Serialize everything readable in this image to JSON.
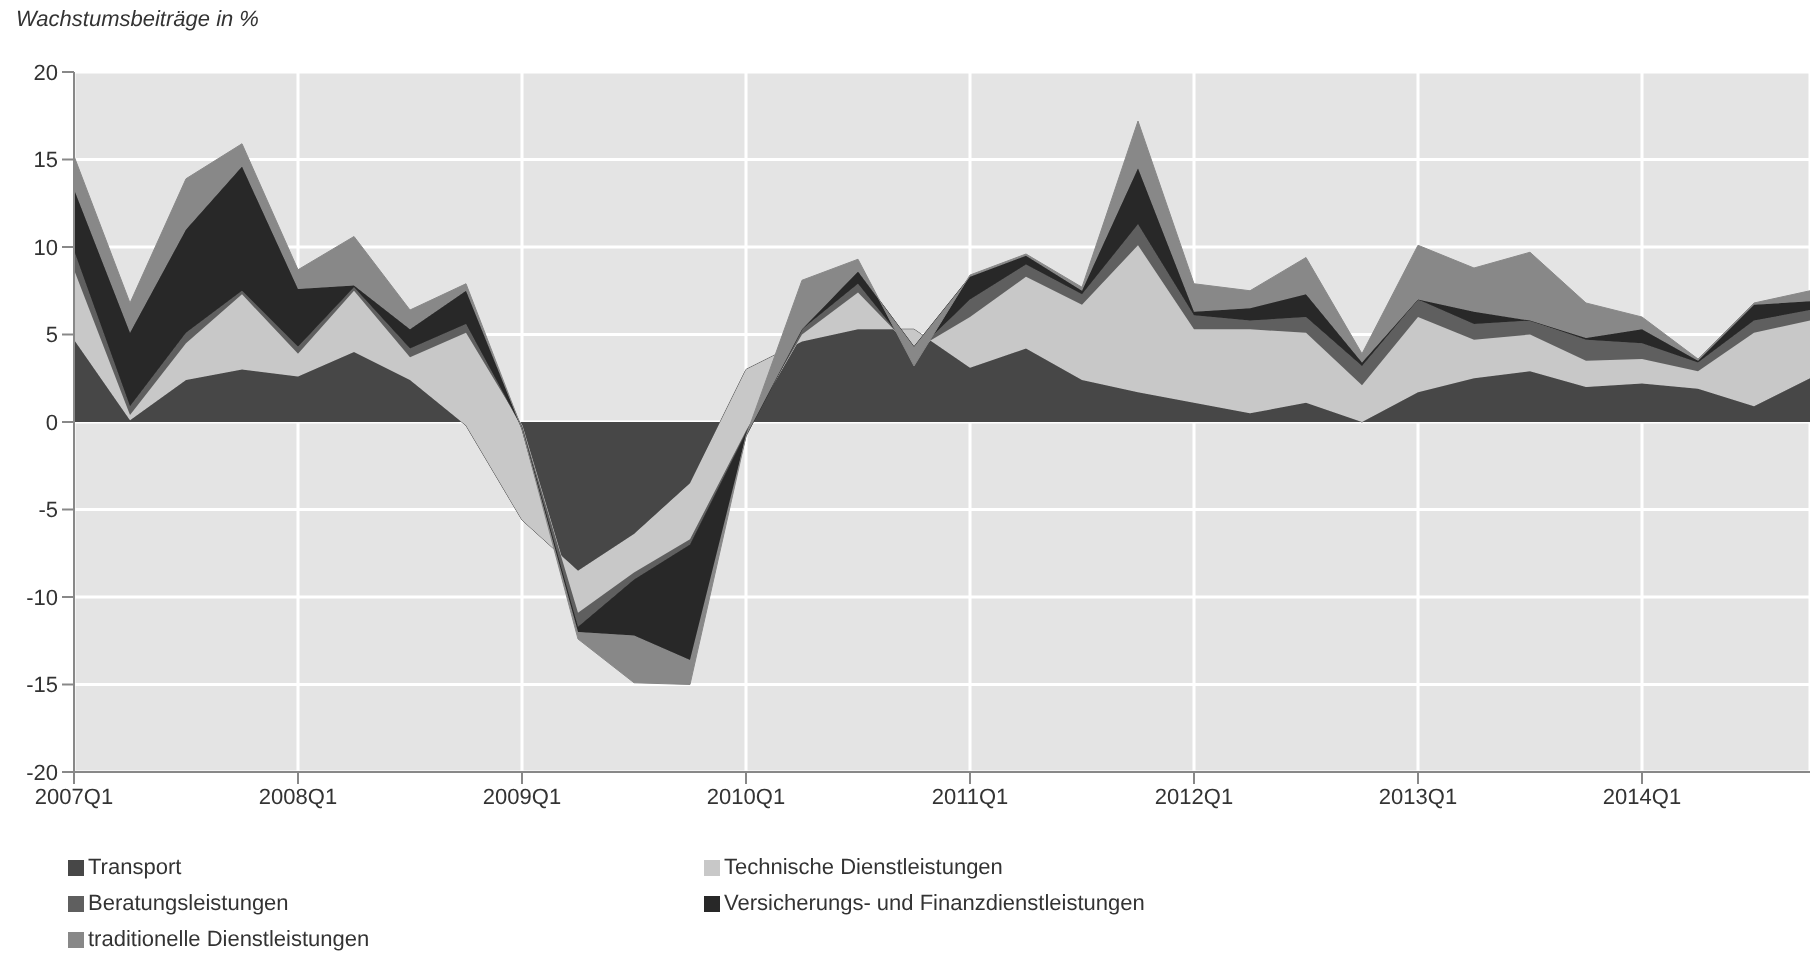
{
  "chart_data": {
    "type": "area",
    "stacked": true,
    "ylabel": "Wachstumsbeiträge in %",
    "categories": [
      "2007Q1",
      null,
      null,
      null,
      "2008Q1",
      null,
      null,
      null,
      "2009Q1",
      null,
      null,
      null,
      "2010Q1",
      null,
      null,
      null,
      "2011Q1",
      null,
      null,
      null,
      "2012Q1",
      null,
      null,
      null,
      "2013Q1",
      null,
      null,
      null,
      "2014Q1",
      null,
      null,
      null
    ],
    "series": [
      {
        "name": "Transport",
        "color": "#474747",
        "values": [
          4.7,
          0.1,
          2.4,
          3.0,
          2.6,
          4.0,
          2.4,
          -0.2,
          -5.6,
          -8.5,
          -6.4,
          -3.5,
          3.0,
          4.6,
          5.3,
          5.3,
          3.1,
          4.2,
          2.4,
          1.7,
          1.1,
          0.5,
          1.1,
          0.0,
          1.7,
          2.5,
          2.9,
          2.0,
          2.2,
          1.9,
          0.9,
          2.5
        ]
      },
      {
        "name": "Technische Dienstleistungen",
        "color": "#c8c8c8",
        "values": [
          4.0,
          0.3,
          2.1,
          4.3,
          1.3,
          3.5,
          1.3,
          5.3,
          5.4,
          -2.4,
          -2.2,
          -3.2,
          -3.5,
          0.4,
          2.1,
          -1.2,
          2.9,
          4.1,
          4.3,
          8.4,
          4.2,
          4.8,
          4.0,
          2.1,
          4.3,
          2.2,
          2.1,
          1.5,
          1.4,
          1.0,
          4.2,
          3.3
        ]
      },
      {
        "name": "Beratungsleistungen",
        "color": "#5f5f5f",
        "values": [
          1.1,
          0.5,
          0.6,
          0.2,
          0.4,
          0.2,
          0.5,
          0.5,
          -0.1,
          -0.8,
          -0.4,
          -0.3,
          -0.1,
          0.3,
          0.5,
          -0.2,
          1.0,
          0.7,
          0.6,
          1.2,
          0.8,
          0.5,
          0.9,
          1.1,
          1.0,
          0.9,
          0.8,
          1.2,
          0.9,
          0.5,
          0.7,
          0.6
        ]
      },
      {
        "name": "Versicherungs- und Finanzdienstleistungen",
        "color": "#282828",
        "values": [
          3.5,
          4.2,
          5.9,
          7.1,
          3.3,
          0.1,
          1.1,
          1.9,
          -0.1,
          -0.3,
          -3.2,
          -6.6,
          -0.2,
          0.0,
          0.7,
          0.4,
          1.3,
          0.5,
          0.2,
          3.2,
          0.2,
          0.7,
          1.3,
          0.2,
          0.0,
          0.7,
          0.0,
          0.1,
          0.8,
          0.1,
          0.9,
          0.5
        ]
      },
      {
        "name": "traditionelle Dienstleistungen",
        "color": "#888888",
        "values": [
          1.9,
          1.7,
          2.9,
          1.3,
          1.1,
          2.8,
          1.1,
          0.4,
          0.0,
          -0.4,
          -2.7,
          -1.4,
          0.0,
          2.8,
          0.7,
          -1.1,
          0.1,
          0.1,
          0.2,
          2.7,
          1.6,
          1.0,
          2.1,
          0.5,
          3.1,
          2.5,
          3.9,
          2.0,
          0.7,
          0.1,
          0.1,
          0.6
        ]
      }
    ],
    "ylim": [
      -20,
      20
    ],
    "yticks": [
      -20,
      -15,
      -10,
      -5,
      0,
      5,
      10,
      15,
      20
    ],
    "grid": true,
    "legend": "bottom"
  }
}
